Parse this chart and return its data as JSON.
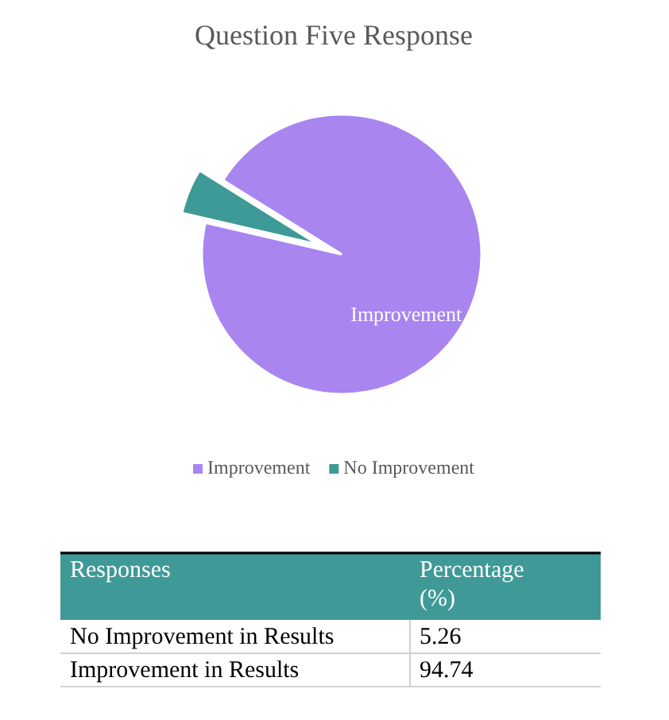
{
  "chart_data": [
    {
      "type": "pie",
      "title": "Question Five Response",
      "categories": [
        "Improvement",
        "No Improvement"
      ],
      "values": [
        94.74,
        5.26
      ],
      "colors": [
        "#a985f0",
        "#3e9a96"
      ],
      "legend": "bottom"
    },
    {
      "type": "other",
      "annotations": [
        "Responses",
        "Percentage (%)"
      ],
      "categories": [
        "No Improvement in Results",
        "Improvement in Results"
      ],
      "values": [
        5.26,
        94.74
      ],
      "data_labels": true,
      "color": "#3f9a97"
    }
  ]
}
